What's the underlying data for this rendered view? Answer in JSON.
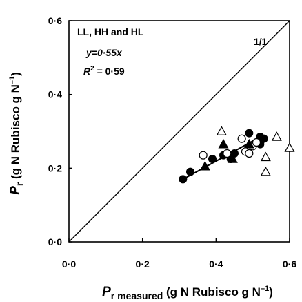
{
  "chart_data": {
    "type": "scatter",
    "xlim": [
      0,
      0.6
    ],
    "ylim": [
      0,
      0.6
    ],
    "x_ticks": [
      "0·0",
      "0·2",
      "0·4",
      "0·6"
    ],
    "y_ticks": [
      "0·0",
      "0·2",
      "0·4",
      "0·6"
    ],
    "xlabel": {
      "main": "P",
      "sub": "r measured",
      "units": " (g N Rubisco g N",
      "sup": "–1",
      "close": ")"
    },
    "ylabel": {
      "main": "P",
      "sub": "r",
      "units": " (g N Rubisco g N",
      "sup": "–1",
      "close": ")"
    },
    "annotations": {
      "group": "LL, HH and HL",
      "equation": "y=0·55x",
      "r2_label": "R",
      "r2_sup": "2",
      "r2_value": " = 0·59",
      "one_to_one": "1/1"
    },
    "one_to_one_line": {
      "x": [
        0,
        0.6
      ],
      "y": [
        0,
        0.6
      ]
    },
    "fit_line": {
      "x": [
        0.31,
        0.53
      ],
      "y": [
        0.17,
        0.29
      ]
    },
    "series": [
      {
        "marker": "filled-circle",
        "points": [
          [
            0.31,
            0.17
          ],
          [
            0.33,
            0.19
          ],
          [
            0.39,
            0.225
          ],
          [
            0.42,
            0.235
          ],
          [
            0.44,
            0.225
          ],
          [
            0.45,
            0.24
          ],
          [
            0.49,
            0.295
          ],
          [
            0.52,
            0.265
          ],
          [
            0.53,
            0.28
          ],
          [
            0.52,
            0.285
          ]
        ]
      },
      {
        "marker": "open-circle",
        "points": [
          [
            0.365,
            0.235
          ],
          [
            0.43,
            0.24
          ],
          [
            0.48,
            0.245
          ],
          [
            0.49,
            0.24
          ],
          [
            0.47,
            0.28
          ],
          [
            0.5,
            0.26
          ],
          [
            0.51,
            0.27
          ]
        ]
      },
      {
        "marker": "filled-triangle",
        "points": [
          [
            0.37,
            0.205
          ],
          [
            0.42,
            0.265
          ],
          [
            0.445,
            0.225
          ],
          [
            0.49,
            0.265
          ]
        ]
      },
      {
        "marker": "open-triangle",
        "points": [
          [
            0.415,
            0.3
          ],
          [
            0.535,
            0.23
          ],
          [
            0.535,
            0.19
          ],
          [
            0.565,
            0.285
          ],
          [
            0.6,
            0.255
          ]
        ]
      }
    ]
  }
}
